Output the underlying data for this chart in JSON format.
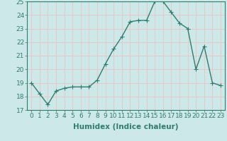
{
  "x": [
    0,
    1,
    2,
    3,
    4,
    5,
    6,
    7,
    8,
    9,
    10,
    11,
    12,
    13,
    14,
    15,
    16,
    17,
    18,
    19,
    20,
    21,
    22,
    23
  ],
  "y": [
    19.0,
    18.2,
    17.4,
    18.4,
    18.6,
    18.7,
    18.7,
    18.7,
    19.2,
    20.4,
    21.5,
    22.4,
    23.5,
    23.6,
    23.6,
    25.0,
    25.0,
    24.2,
    23.4,
    23.0,
    20.0,
    21.7,
    19.0,
    18.8
  ],
  "line_color": "#2e7d6e",
  "marker": "+",
  "marker_size": 4,
  "line_width": 1.0,
  "bg_color": "#cde8e8",
  "grid_color_major": "#e8c8c8",
  "grid_color_minor": "#e8c8c8",
  "xlabel": "Humidex (Indice chaleur)",
  "ylim": [
    17,
    25
  ],
  "xlim": [
    -0.5,
    23.5
  ],
  "yticks": [
    17,
    18,
    19,
    20,
    21,
    22,
    23,
    24,
    25
  ],
  "xticks": [
    0,
    1,
    2,
    3,
    4,
    5,
    6,
    7,
    8,
    9,
    10,
    11,
    12,
    13,
    14,
    15,
    16,
    17,
    18,
    19,
    20,
    21,
    22,
    23
  ],
  "xlabel_fontsize": 7.5,
  "tick_fontsize": 6.5
}
